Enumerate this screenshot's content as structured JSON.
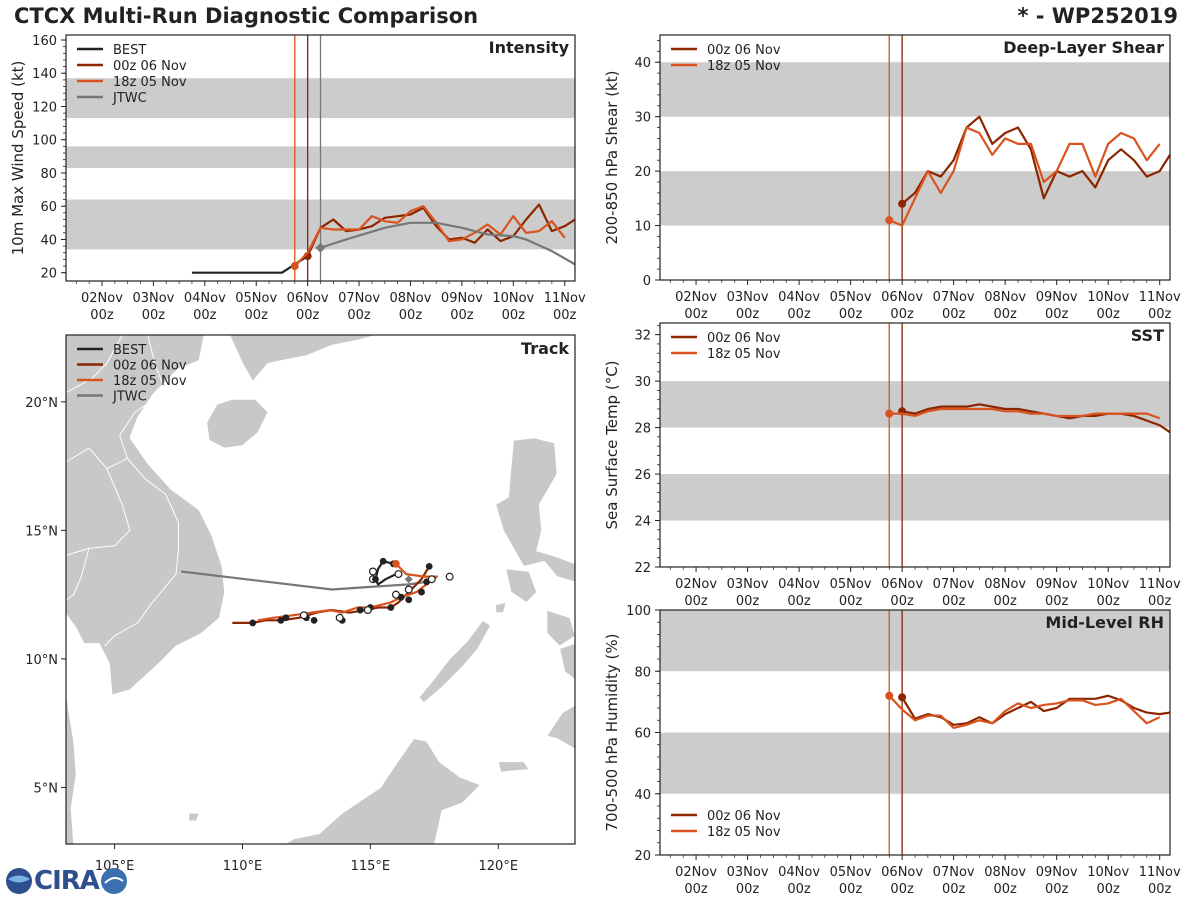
{
  "header": {
    "title": "CTCX Multi-Run Diagnostic Comparison",
    "storm_id": "* - WP252019"
  },
  "logo": {
    "text": "CIRA",
    "subtext": "CIRA"
  },
  "colors": {
    "best": "#222222",
    "run_00z": "#8B2500",
    "run_18z": "#D9531E",
    "jtwc": "#777777",
    "band": "#cccccc",
    "land": "#c8c8c8"
  },
  "date_ticks": [
    {
      "day": "02Nov",
      "hour": "00z"
    },
    {
      "day": "03Nov",
      "hour": "00z"
    },
    {
      "day": "04Nov",
      "hour": "00z"
    },
    {
      "day": "05Nov",
      "hour": "00z"
    },
    {
      "day": "06Nov",
      "hour": "00z"
    },
    {
      "day": "07Nov",
      "hour": "00z"
    },
    {
      "day": "08Nov",
      "hour": "00z"
    },
    {
      "day": "09Nov",
      "hour": "00z"
    },
    {
      "day": "10Nov",
      "hour": "00z"
    },
    {
      "day": "11Nov",
      "hour": "00z"
    }
  ],
  "chart_data": [
    {
      "id": "intensity",
      "type": "line",
      "title": "Intensity",
      "ylabel": "10m Max Wind Speed (kt)",
      "xlim": [
        1.3,
        11.2
      ],
      "ylim": [
        15,
        163
      ],
      "yticks": [
        20,
        40,
        60,
        80,
        100,
        120,
        140,
        160
      ],
      "bands": [
        [
          34,
          64
        ],
        [
          83,
          96
        ],
        [
          113,
          137
        ]
      ],
      "vlines": [
        {
          "x": 5.75,
          "color": "run_18z"
        },
        {
          "x": 6.0,
          "color": "run_00z"
        },
        {
          "x": 6.25,
          "color": "jtwc"
        }
      ],
      "legend": [
        "BEST",
        "00z 06 Nov",
        "18z 05 Nov",
        "JTWC"
      ],
      "series": [
        {
          "name": "BEST",
          "color": "best",
          "x": [
            3.75,
            4.0,
            4.5,
            5.0,
            5.5,
            5.75,
            6.0
          ],
          "y": [
            20,
            20,
            20,
            20,
            20,
            25,
            30
          ]
        },
        {
          "name": "00z 06 Nov",
          "color": "run_00z",
          "marker_start": true,
          "x": [
            6.0,
            6.25,
            6.5,
            6.75,
            7.0,
            7.25,
            7.5,
            7.75,
            8.0,
            8.25,
            8.5,
            8.75,
            9.0,
            9.25,
            9.5,
            9.75,
            10.0,
            10.25,
            10.5,
            10.75,
            11.0,
            11.25
          ],
          "y": [
            30,
            47,
            52,
            45,
            46,
            48,
            53,
            54,
            55,
            59,
            48,
            40,
            41,
            38,
            46,
            39,
            42,
            52,
            61,
            45,
            48,
            52
          ]
        },
        {
          "name": "18z 05 Nov",
          "color": "run_18z",
          "marker_start": true,
          "x": [
            5.75,
            6.0,
            6.25,
            6.5,
            6.75,
            7.0,
            7.25,
            7.5,
            7.75,
            8.0,
            8.25,
            8.5,
            8.75,
            9.0,
            9.25,
            9.5,
            9.75,
            10.0,
            10.25,
            10.5,
            10.75,
            11.0
          ],
          "y": [
            24,
            32,
            47,
            46,
            46,
            46,
            54,
            51,
            50,
            57,
            60,
            50,
            39,
            40,
            44,
            49,
            43,
            54,
            44,
            45,
            51,
            41
          ]
        },
        {
          "name": "JTWC",
          "color": "jtwc",
          "marker_start": true,
          "x": [
            6.25,
            6.75,
            7.5,
            8.0,
            8.5,
            9.0,
            9.5,
            10.0,
            10.25,
            10.75,
            11.25
          ],
          "y": [
            35,
            40,
            47,
            50,
            50,
            47,
            43,
            42,
            40,
            33,
            25
          ]
        }
      ]
    },
    {
      "id": "shear",
      "type": "line",
      "title": "Deep-Layer Shear",
      "ylabel": "200-850 hPa Shear (kt)",
      "xlim": [
        1.3,
        11.2
      ],
      "ylim": [
        0,
        45
      ],
      "yticks": [
        0,
        10,
        20,
        30,
        40
      ],
      "bands": [
        [
          10,
          20
        ],
        [
          30,
          40
        ]
      ],
      "vlines": [
        {
          "x": 5.75,
          "color": "run_18z"
        },
        {
          "x": 6.0,
          "color": "run_00z"
        }
      ],
      "legend": [
        "00z 06 Nov",
        "18z 05 Nov"
      ],
      "series": [
        {
          "name": "00z 06 Nov",
          "color": "run_00z",
          "marker_start": true,
          "x": [
            6.0,
            6.25,
            6.5,
            6.75,
            7.0,
            7.25,
            7.5,
            7.75,
            8.0,
            8.25,
            8.5,
            8.75,
            9.0,
            9.25,
            9.5,
            9.75,
            10.0,
            10.25,
            10.5,
            10.75,
            11.0,
            11.25
          ],
          "y": [
            14,
            16,
            20,
            19,
            22,
            28,
            30,
            25,
            27,
            28,
            24,
            15,
            20,
            19,
            20,
            17,
            22,
            24,
            22,
            19,
            20,
            23
          ]
        },
        {
          "name": "18z 05 Nov",
          "color": "run_18z",
          "marker_start": true,
          "x": [
            5.75,
            6.0,
            6.25,
            6.5,
            6.75,
            7.0,
            7.25,
            7.5,
            7.75,
            8.0,
            8.25,
            8.5,
            8.75,
            9.0,
            9.25,
            9.5,
            9.75,
            10.0,
            10.25,
            10.5,
            10.75,
            11.0
          ],
          "y": [
            11,
            10,
            15,
            20,
            16,
            20,
            28,
            27,
            23,
            26,
            25,
            25,
            18,
            20,
            25,
            25,
            19,
            25,
            27,
            26,
            22,
            25
          ]
        }
      ]
    },
    {
      "id": "sst",
      "type": "line",
      "title": "SST",
      "ylabel": "Sea Surface Temp (°C)",
      "xlim": [
        1.3,
        11.2
      ],
      "ylim": [
        22,
        32.5
      ],
      "yticks": [
        22,
        24,
        26,
        28,
        30,
        32
      ],
      "bands": [
        [
          24,
          26
        ],
        [
          28,
          30
        ]
      ],
      "vlines": [
        {
          "x": 5.75,
          "color": "run_18z"
        },
        {
          "x": 6.0,
          "color": "run_00z"
        }
      ],
      "legend": [
        "00z 06 Nov",
        "18z 05 Nov"
      ],
      "series": [
        {
          "name": "00z 06 Nov",
          "color": "run_00z",
          "marker_start": true,
          "x": [
            6.0,
            6.25,
            6.5,
            6.75,
            7.0,
            7.25,
            7.5,
            7.75,
            8.0,
            8.25,
            8.5,
            8.75,
            9.0,
            9.25,
            9.5,
            9.75,
            10.0,
            10.25,
            10.5,
            10.75,
            11.0,
            11.25
          ],
          "y": [
            28.7,
            28.6,
            28.8,
            28.9,
            28.9,
            28.9,
            29.0,
            28.9,
            28.8,
            28.8,
            28.7,
            28.6,
            28.5,
            28.4,
            28.5,
            28.5,
            28.6,
            28.6,
            28.5,
            28.3,
            28.1,
            27.8
          ]
        },
        {
          "name": "18z 05 Nov",
          "color": "run_18z",
          "marker_start": true,
          "x": [
            5.75,
            6.0,
            6.25,
            6.5,
            6.75,
            7.0,
            7.25,
            7.5,
            7.75,
            8.0,
            8.25,
            8.5,
            8.75,
            9.0,
            9.25,
            9.5,
            9.75,
            10.0,
            10.25,
            10.5,
            10.75,
            11.0
          ],
          "y": [
            28.6,
            28.6,
            28.5,
            28.7,
            28.8,
            28.8,
            28.8,
            28.8,
            28.8,
            28.7,
            28.7,
            28.6,
            28.6,
            28.5,
            28.5,
            28.5,
            28.6,
            28.6,
            28.6,
            28.6,
            28.6,
            28.4
          ]
        }
      ]
    },
    {
      "id": "rh",
      "type": "line",
      "title": "Mid-Level RH",
      "ylabel": "700-500 hPa Humidity (%)",
      "xlim": [
        1.3,
        11.2
      ],
      "ylim": [
        20,
        100
      ],
      "yticks": [
        20,
        40,
        60,
        80,
        100
      ],
      "bands": [
        [
          40,
          60
        ],
        [
          80,
          100
        ]
      ],
      "vlines": [
        {
          "x": 5.75,
          "color": "run_18z"
        },
        {
          "x": 6.0,
          "color": "run_00z"
        }
      ],
      "legend": [
        "00z 06 Nov",
        "18z 05 Nov"
      ],
      "series": [
        {
          "name": "00z 06 Nov",
          "color": "run_00z",
          "marker_start": true,
          "x": [
            6.0,
            6.25,
            6.5,
            6.75,
            7.0,
            7.25,
            7.5,
            7.75,
            8.0,
            8.25,
            8.5,
            8.75,
            9.0,
            9.25,
            9.5,
            9.75,
            10.0,
            10.25,
            10.5,
            10.75,
            11.0,
            11.25
          ],
          "y": [
            71.5,
            64.5,
            66,
            65,
            62.5,
            63,
            65,
            63,
            66,
            68,
            70,
            67,
            68,
            71,
            71,
            71,
            72,
            70.5,
            68,
            66.5,
            66,
            66.5
          ]
        },
        {
          "name": "18z 05 Nov",
          "color": "run_18z",
          "marker_start": true,
          "x": [
            5.75,
            6.0,
            6.25,
            6.5,
            6.75,
            7.0,
            7.25,
            7.5,
            7.75,
            8.0,
            8.25,
            8.5,
            8.75,
            9.0,
            9.25,
            9.5,
            9.75,
            10.0,
            10.25,
            10.5,
            10.75,
            11.0
          ],
          "y": [
            72,
            67.5,
            64,
            65.5,
            65.5,
            61.5,
            62.5,
            64,
            63,
            67,
            69.5,
            68,
            69,
            69.5,
            70.5,
            70.5,
            69,
            69.5,
            71,
            67,
            63,
            65
          ]
        }
      ]
    },
    {
      "id": "track",
      "type": "map",
      "title": "Track",
      "lon_range": [
        103.1,
        123.0
      ],
      "lat_range": [
        2.8,
        22.6
      ],
      "lon_ticks": [
        {
          "v": 105,
          "label": "105°E"
        },
        {
          "v": 110,
          "label": "110°E"
        },
        {
          "v": 115,
          "label": "115°E"
        },
        {
          "v": 120,
          "label": "120°E"
        }
      ],
      "lat_ticks": [
        {
          "v": 5,
          "label": "5°N"
        },
        {
          "v": 10,
          "label": "10°N"
        },
        {
          "v": 15,
          "label": "15°N"
        },
        {
          "v": 20,
          "label": "20°N"
        }
      ],
      "legend": [
        "BEST",
        "00z 06 Nov",
        "18z 05 Nov",
        "JTWC"
      ],
      "series": [
        {
          "name": "BEST",
          "color": "best",
          "lon": [
            115.9,
            115.5,
            115.3,
            115.2,
            115.3,
            115.6,
            116.0
          ],
          "lat": [
            13.7,
            13.8,
            13.5,
            13.1,
            12.9,
            13.1,
            13.3
          ],
          "markers": [
            [
              115.5,
              13.8
            ],
            [
              115.2,
              13.1
            ],
            [
              115.9,
              13.7
            ]
          ]
        },
        {
          "name": "JTWC",
          "color": "jtwc",
          "lon": [
            117.2,
            116.5,
            115.0,
            113.5,
            107.6
          ],
          "lat": [
            13.0,
            12.9,
            12.8,
            12.7,
            13.4
          ],
          "markers": [
            [
              116.5,
              13.1
            ]
          ]
        },
        {
          "name": "00z 06 Nov",
          "color": "run_00z",
          "lon": [
            117.3,
            117.0,
            116.5,
            116.1,
            115.8,
            115.3,
            114.8,
            114.2,
            113.5,
            112.9,
            112.2,
            111.5,
            110.9,
            110.4,
            110.0,
            109.6
          ],
          "lat": [
            13.6,
            13.1,
            12.6,
            12.2,
            12.0,
            12.0,
            11.9,
            11.8,
            11.9,
            11.8,
            11.6,
            11.5,
            11.5,
            11.4,
            11.4,
            11.4
          ],
          "markers": [
            [
              117.3,
              13.6
            ],
            [
              117.0,
              12.6
            ],
            [
              116.5,
              12.3
            ],
            [
              115.8,
              12.0
            ],
            [
              114.6,
              11.9
            ],
            [
              112.8,
              11.5
            ],
            [
              111.5,
              11.5
            ],
            [
              110.4,
              11.4
            ]
          ]
        },
        {
          "name": "18z 05 Nov",
          "color": "run_18z",
          "lon": [
            116.0,
            116.4,
            117.1,
            117.6,
            117.2,
            116.8,
            116.2,
            115.8,
            115.0,
            114.5,
            113.9,
            113.4,
            112.7,
            112.0,
            111.2,
            110.6
          ],
          "lat": [
            13.7,
            13.3,
            13.2,
            13.2,
            12.9,
            12.6,
            12.4,
            12.2,
            12.0,
            12.0,
            11.8,
            11.9,
            11.8,
            11.7,
            11.6,
            11.5
          ],
          "markers": [
            [
              116.0,
              13.7
            ],
            [
              117.2,
              13.0
            ],
            [
              116.2,
              12.4
            ],
            [
              115.0,
              12.0
            ],
            [
              113.9,
              11.5
            ],
            [
              112.5,
              11.6
            ],
            [
              111.7,
              11.6
            ]
          ],
          "open_markers": [
            [
              118.1,
              13.2
            ],
            [
              117.4,
              13.1
            ],
            [
              116.5,
              12.7
            ],
            [
              116.0,
              12.5
            ],
            [
              114.9,
              11.9
            ],
            [
              113.8,
              11.6
            ],
            [
              112.4,
              11.7
            ],
            [
              115.1,
              13.4
            ],
            [
              115.1,
              13.1
            ],
            [
              116.1,
              13.3
            ]
          ]
        }
      ]
    }
  ]
}
